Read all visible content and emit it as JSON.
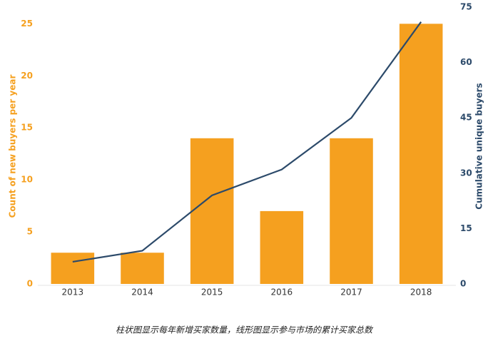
{
  "chart_data": {
    "type": "bar",
    "categories": [
      "2013",
      "2014",
      "2015",
      "2016",
      "2017",
      "2018"
    ],
    "ylabel": "Count of new buyers per year",
    "y2label": "Cumulative unique buyers",
    "series": [
      {
        "type": "bar",
        "color": "#f5a01f",
        "values": [
          3,
          3,
          14,
          7,
          14,
          25
        ]
      },
      {
        "type": "line",
        "axis": "y2",
        "color": "#2c4a6a",
        "values": [
          6,
          9,
          24,
          31,
          45,
          71
        ]
      }
    ],
    "ylim": [
      0,
      26.6
    ],
    "yticks": [
      0,
      5,
      10,
      15,
      20,
      25
    ],
    "y2lim": [
      0,
      75
    ],
    "y2ticks": [
      0,
      15,
      30,
      45,
      60,
      75
    ],
    "grid": false,
    "caption": "柱状图显示每年新增买家数量，线形图显示参与市场的累计买家总数"
  }
}
